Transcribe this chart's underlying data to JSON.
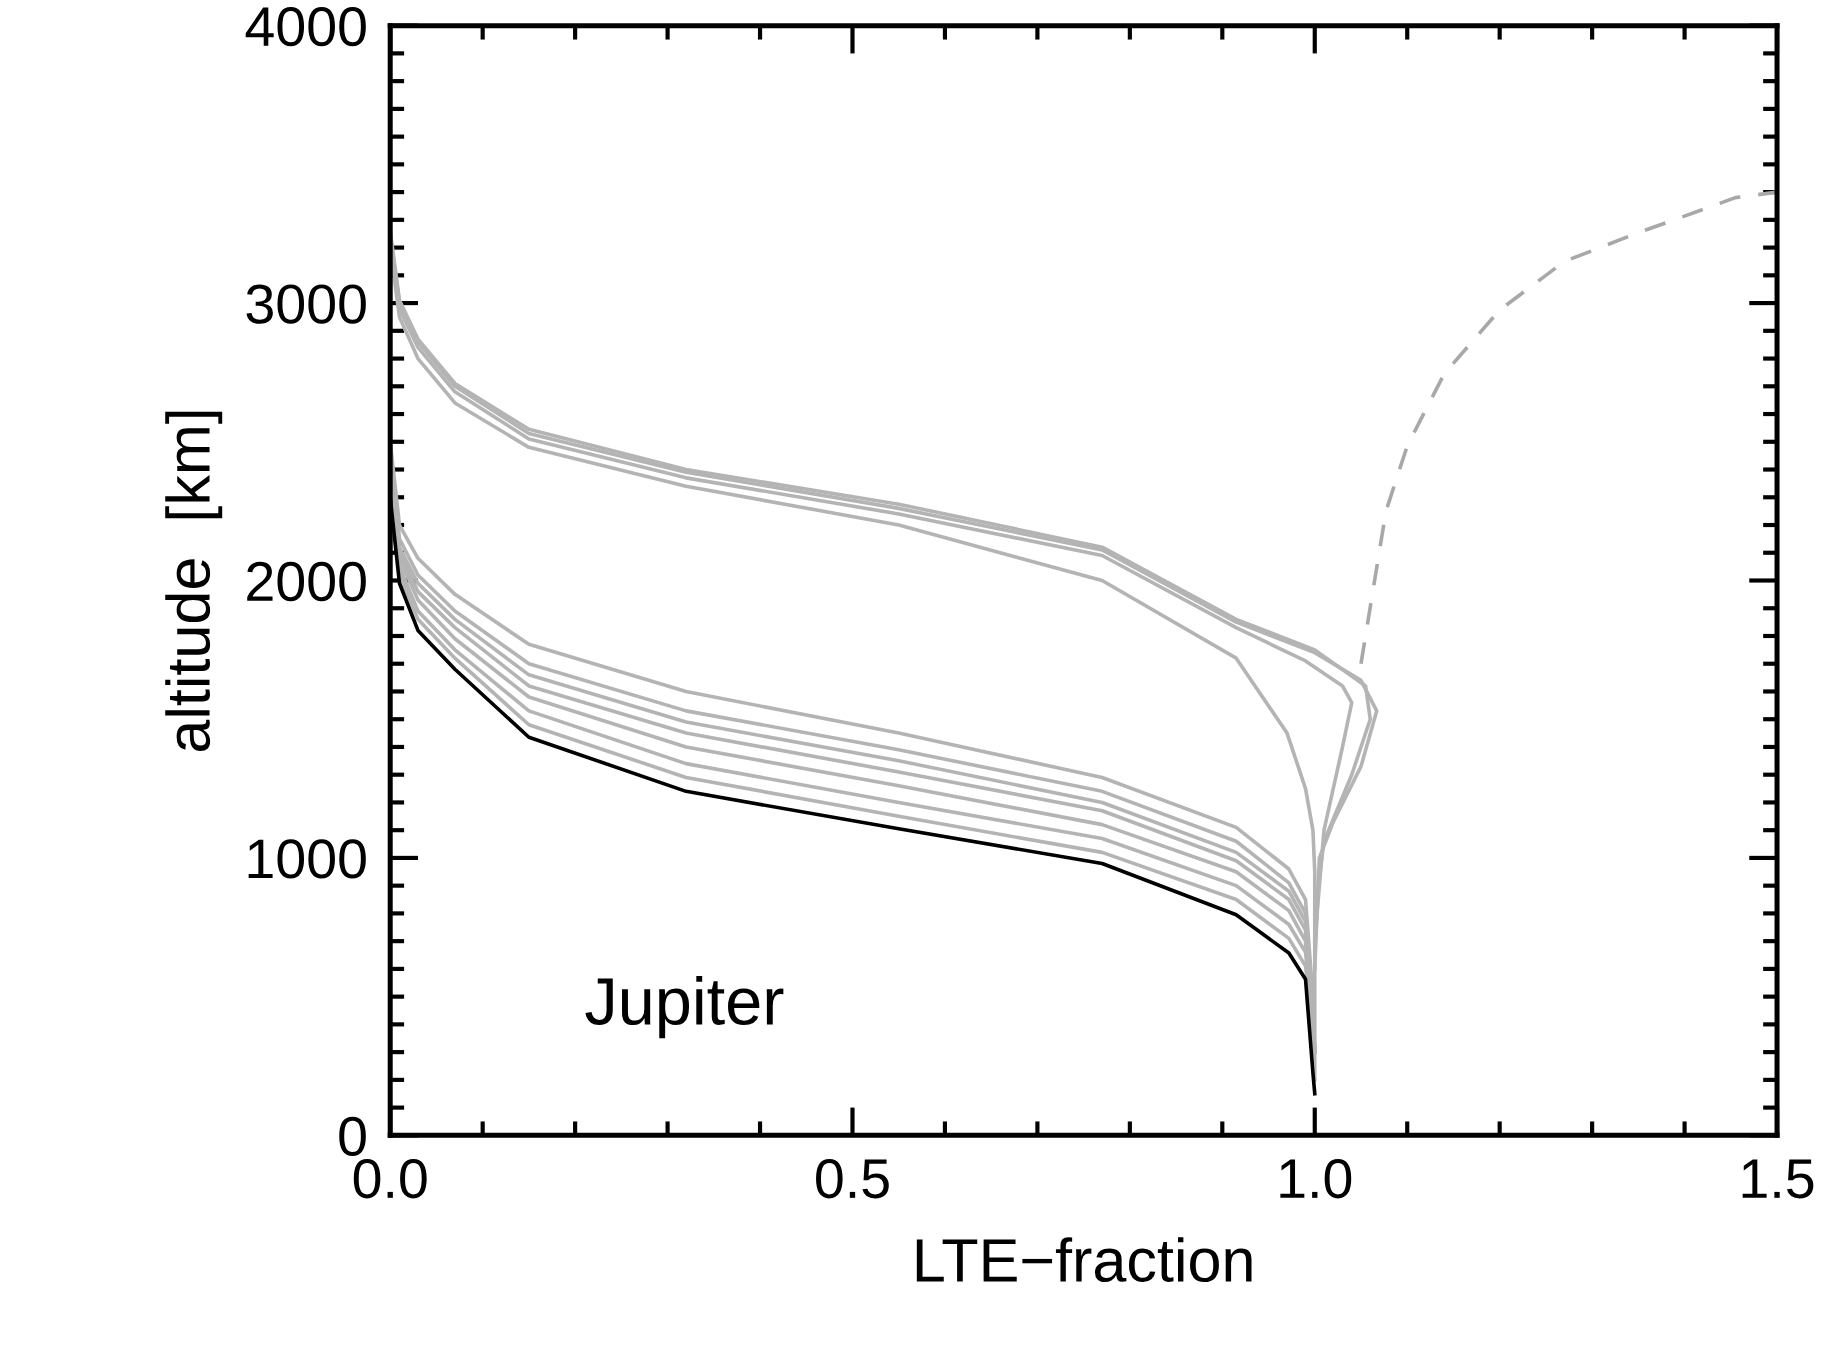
{
  "chart_data": {
    "type": "line",
    "xlabel": "LTE−fraction",
    "ylabel": "altitude  [km]",
    "xlim": [
      0,
      1.5
    ],
    "xticks": [
      {
        "value": 0,
        "label": "0.0"
      },
      {
        "value": 0.5,
        "label": "0.5"
      },
      {
        "value": 1.0,
        "label": "1.0"
      },
      {
        "value": 1.5,
        "label": "1.5"
      }
    ],
    "ylim": [
      0,
      4000
    ],
    "yticks": [
      0,
      1000,
      2000,
      3000,
      4000
    ],
    "grid": false,
    "marker": "none",
    "annotations": [
      "Jupiter"
    ],
    "x": [
      0,
      0.01,
      0.03,
      0.07,
      0.15,
      0.32,
      0.55,
      0.77,
      0.915,
      0.972,
      0.99,
      0.998,
      1.0
    ],
    "series": [
      {
        "color": "#b4b4b4",
        "values": [
          2500,
          2200,
          2080,
          1950,
          1770,
          1600,
          1450,
          1290,
          1110,
          960,
          850,
          500,
          300
        ]
      },
      {
        "color": "#b4b4b4",
        "values": [
          2480,
          2150,
          2020,
          1890,
          1700,
          1530,
          1390,
          1240,
          1060,
          910,
          800,
          450,
          300
        ]
      },
      {
        "color": "#b4b4b4",
        "values": [
          2460,
          2120,
          1990,
          1860,
          1660,
          1490,
          1350,
          1200,
          1020,
          880,
          770,
          420,
          300
        ]
      },
      {
        "color": "#b4b4b4",
        "values": [
          2440,
          2100,
          1960,
          1830,
          1620,
          1450,
          1310,
          1170,
          990,
          850,
          740,
          380,
          300
        ]
      },
      {
        "color": "#b4b4b4",
        "values": [
          2420,
          2080,
          1930,
          1790,
          1580,
          1400,
          1260,
          1120,
          950,
          810,
          700,
          350,
          300
        ]
      },
      {
        "color": "#b4b4b4",
        "values": [
          2400,
          2050,
          1890,
          1750,
          1530,
          1340,
          1200,
          1070,
          900,
          760,
          660,
          400,
          300
        ]
      },
      {
        "color": "#b4b4b4",
        "values": [
          2380,
          2020,
          1860,
          1720,
          1480,
          1290,
          1150,
          1020,
          850,
          710,
          610,
          400,
          300
        ]
      },
      {
        "color": "#b4b4b4",
        "x": [
          0,
          0.01,
          0.03,
          0.07,
          0.15,
          0.32,
          0.55,
          0.77,
          0.915,
          0.97,
          0.99,
          0.998,
          1.0,
          1.0,
          1.0
        ],
        "values": [
          3200,
          2950,
          2800,
          2640,
          2480,
          2340,
          2200,
          2000,
          1720,
          1450,
          1250,
          1100,
          950,
          500,
          200
        ]
      },
      {
        "color": "#b4b4b4",
        "x": [
          0,
          0.01,
          0.03,
          0.07,
          0.15,
          0.32,
          0.55,
          0.77,
          0.915,
          1.0,
          1.05,
          1.067,
          1.05,
          1.02,
          1.005,
          1.0
        ],
        "values": [
          3250,
          3000,
          2860,
          2700,
          2530,
          2390,
          2260,
          2110,
          1850,
          1740,
          1640,
          1530,
          1330,
          1130,
          1000,
          600
        ]
      },
      {
        "color": "#b4b4b4",
        "x": [
          0,
          0.01,
          0.03,
          0.07,
          0.15,
          0.32,
          0.55,
          0.77,
          0.915,
          0.99,
          1.03,
          1.04,
          1.03,
          1.01,
          1.0
        ],
        "values": [
          3230,
          2980,
          2840,
          2680,
          2510,
          2370,
          2240,
          2090,
          1830,
          1710,
          1620,
          1560,
          1400,
          1100,
          700
        ]
      },
      {
        "color": "#b4b4b4",
        "x": [
          0,
          0.01,
          0.03,
          0.07,
          0.15,
          0.32,
          0.55,
          0.77,
          0.915,
          1.0,
          1.055,
          1.06,
          1.04,
          1.01,
          1.0
        ],
        "values": [
          3260,
          3010,
          2870,
          2710,
          2545,
          2400,
          2275,
          2120,
          1860,
          1750,
          1620,
          1500,
          1300,
          1060,
          800
        ]
      },
      {
        "color": "#a8a8a8",
        "line_style": "dashed",
        "x": [
          1.05,
          1.077,
          1.1,
          1.14,
          1.2,
          1.27,
          1.347,
          1.455,
          1.5
        ],
        "values": [
          1700,
          2250,
          2485,
          2745,
          2975,
          3150,
          3250,
          3380,
          3400
        ]
      },
      {
        "color": "#000000",
        "values": [
          2300,
          1990,
          1820,
          1680,
          1435,
          1240,
          1105,
          980,
          795,
          657,
          563,
          225,
          150
        ]
      }
    ]
  }
}
